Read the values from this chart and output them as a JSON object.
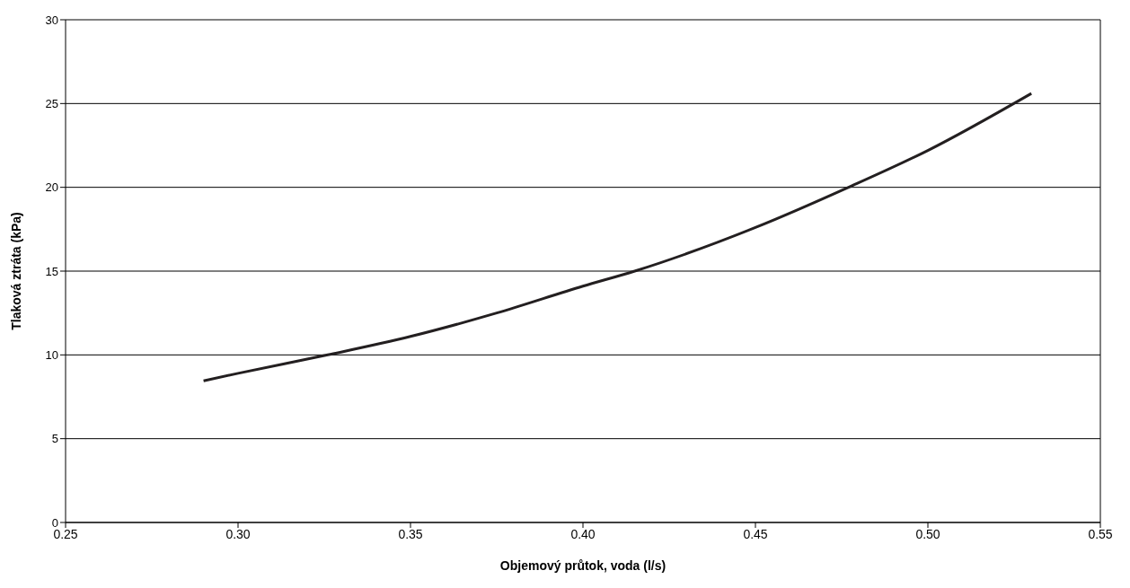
{
  "chart_data": {
    "type": "line",
    "xlabel": "Objemový průtok, voda (l/s)",
    "ylabel": "Tlaková ztráta (kPa)",
    "x": [
      0.29,
      0.3,
      0.326,
      0.35,
      0.375,
      0.4,
      0.415,
      0.45,
      0.477,
      0.5,
      0.53
    ],
    "series": [
      {
        "color": "#231f20",
        "values": [
          8.45,
          8.9,
          10,
          11.1,
          12.5,
          14.1,
          15,
          17.6,
          20,
          22.2,
          25.6
        ]
      }
    ],
    "xlim": [
      0.25,
      0.55
    ],
    "xticks": [
      {
        "value": 0.25,
        "label": "0.25"
      },
      {
        "value": 0.3,
        "label": "0.30"
      },
      {
        "value": 0.35,
        "label": "0.35"
      },
      {
        "value": 0.4,
        "label": "0.40"
      },
      {
        "value": 0.45,
        "label": "0.45"
      },
      {
        "value": 0.5,
        "label": "0.50"
      },
      {
        "value": 0.55,
        "label": "0.55"
      }
    ],
    "ylim": [
      0,
      30
    ],
    "yticks": [
      0,
      5,
      10,
      15,
      20,
      25,
      30
    ],
    "grid": "y",
    "marker": "none",
    "line_style": "solid"
  }
}
